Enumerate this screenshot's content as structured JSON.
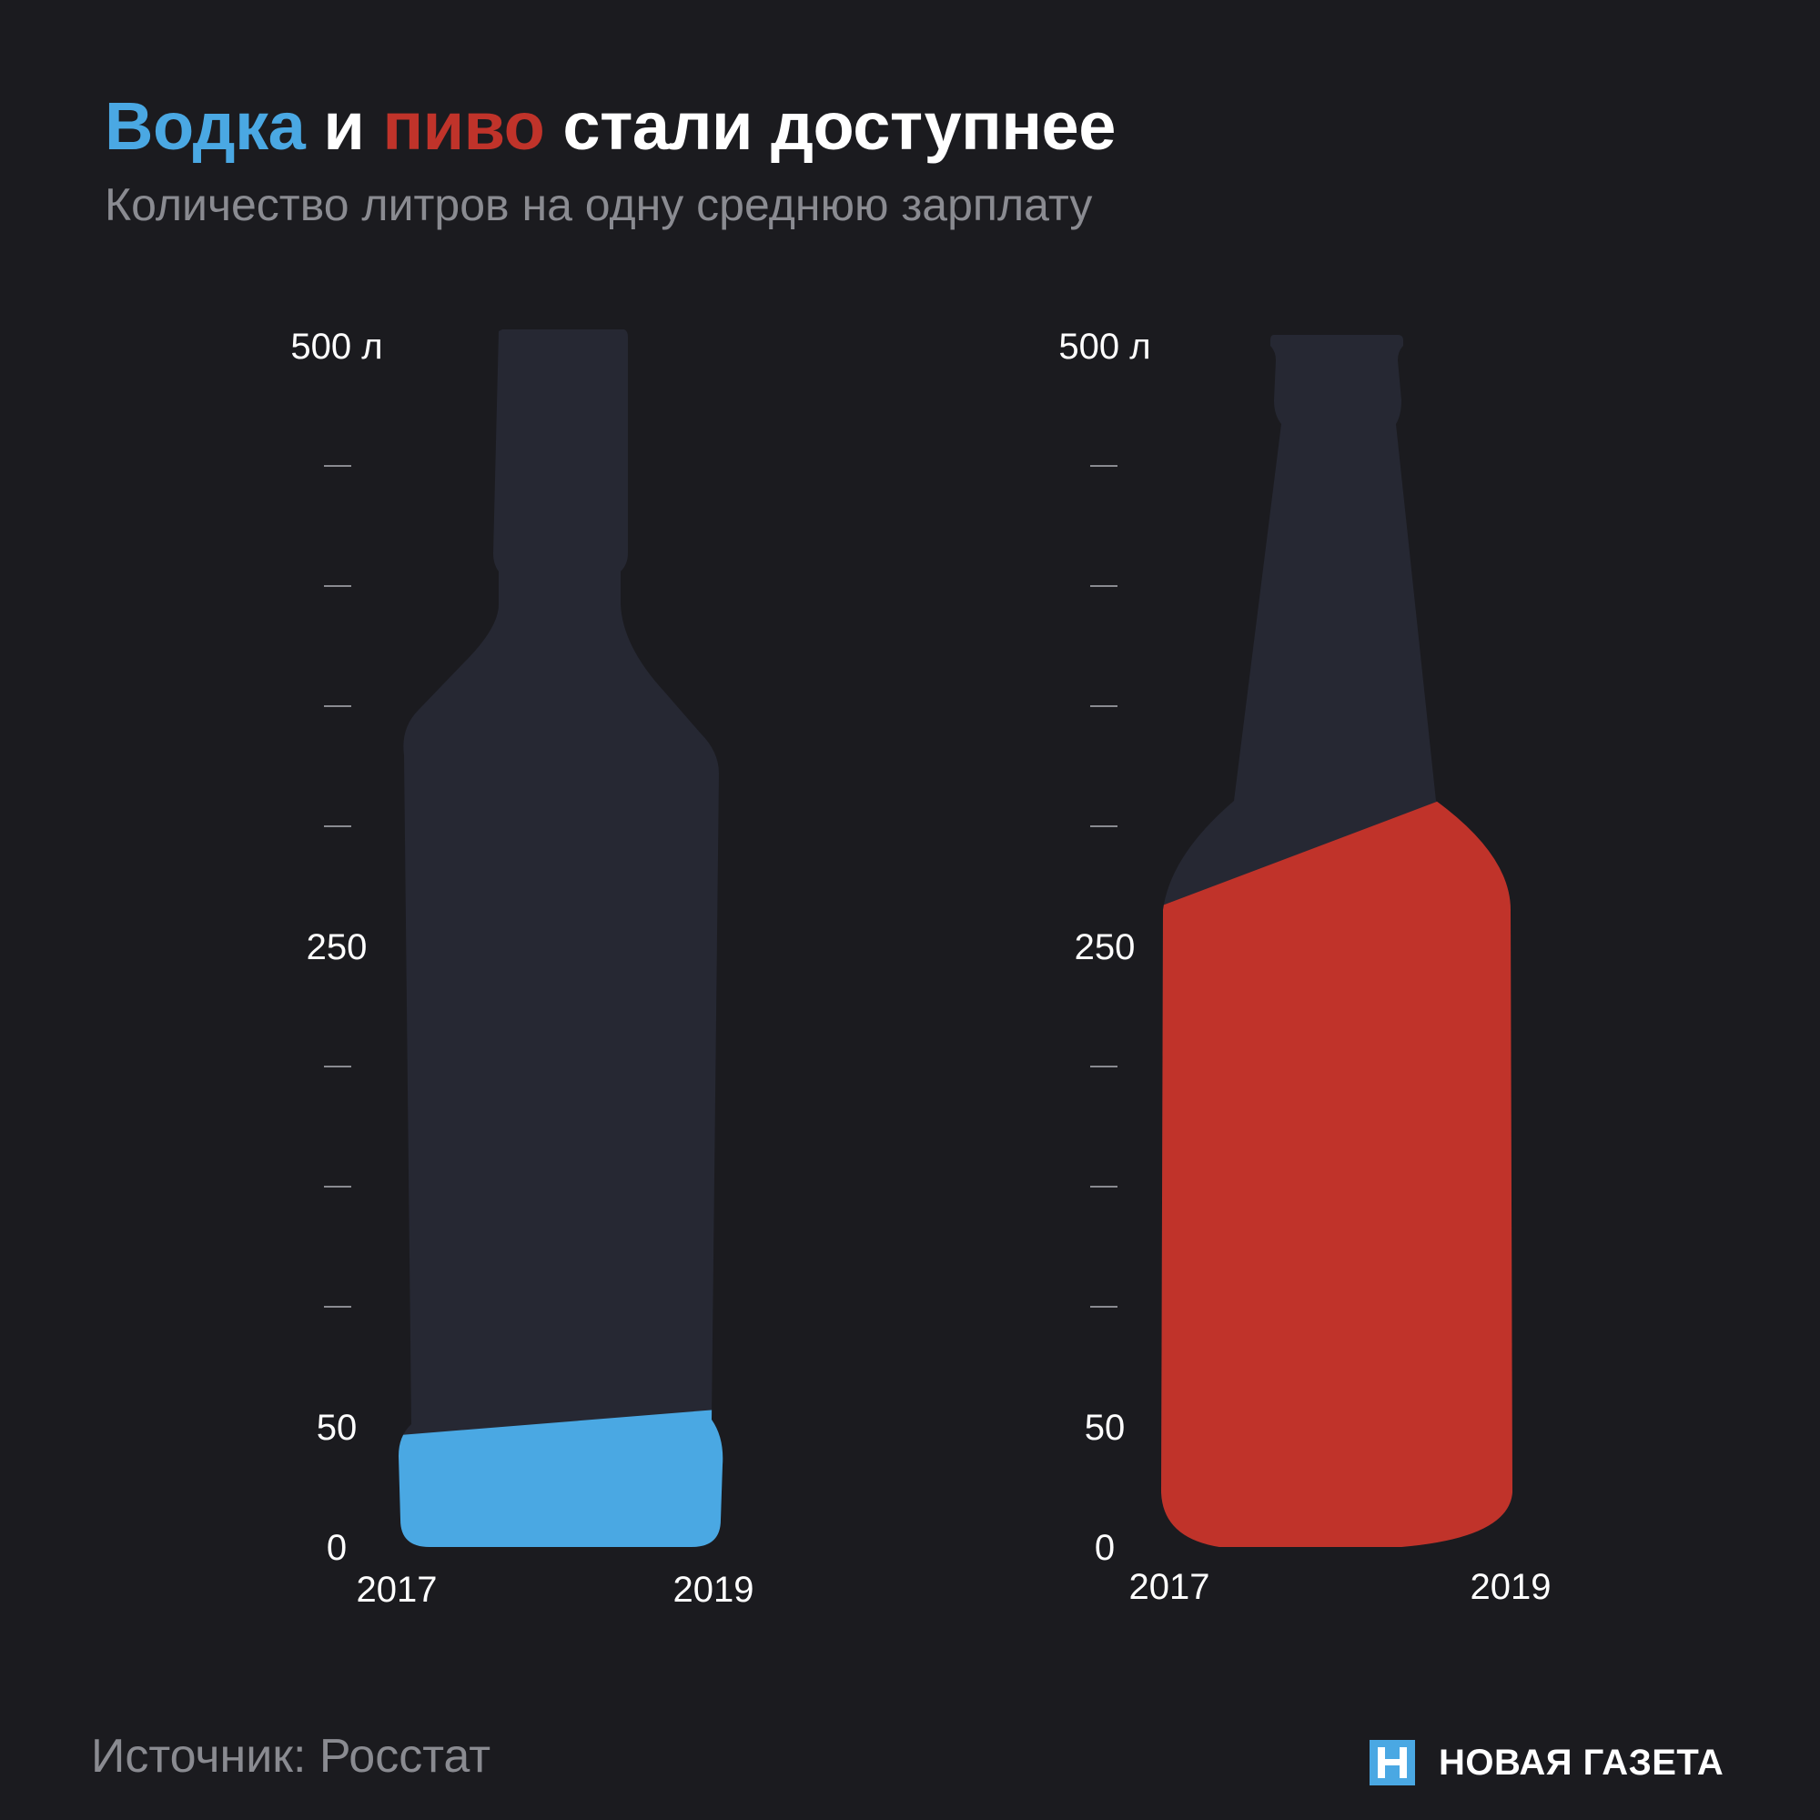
{
  "title": {
    "part1": "Водка",
    "part2": " и ",
    "part3": "пиво",
    "part4": " стали доступнее"
  },
  "subtitle": "Количество литров на одну среднюю зарплату",
  "colors": {
    "vodka": "#4aa8e3",
    "beer": "#c0332a",
    "bottle": "#262833",
    "background": "#1b1b1f"
  },
  "source": "Источник: Росстат",
  "brand": {
    "name": "НОВАЯ ГАЗЕТА"
  },
  "chart_data": [
    {
      "type": "area",
      "name": "Водка",
      "x": [
        "2017",
        "2019"
      ],
      "values": [
        46,
        58
      ],
      "color": "#4aa8e3",
      "axis_labels": [
        "500 л",
        "250",
        "50",
        "0"
      ],
      "ylim": [
        0,
        500
      ],
      "ticks": [
        0,
        50,
        100,
        150,
        200,
        250,
        300,
        350,
        400,
        450,
        500
      ]
    },
    {
      "type": "area",
      "name": "Пиво",
      "x": [
        "2017",
        "2019"
      ],
      "values": [
        264,
        325
      ],
      "color": "#c0332a",
      "axis_labels": [
        "500 л",
        "250",
        "50",
        "0"
      ],
      "ylim": [
        0,
        500
      ],
      "ticks": [
        0,
        50,
        100,
        150,
        200,
        250,
        300,
        350,
        400,
        450,
        500
      ]
    }
  ]
}
